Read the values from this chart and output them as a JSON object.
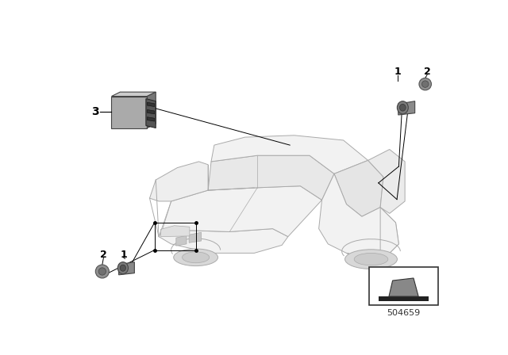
{
  "bg_color": "#ffffff",
  "line_color": "#000000",
  "part_number": "504659",
  "figsize": [
    6.4,
    4.48
  ],
  "dpi": 100,
  "car_line_color": "#aaaaaa",
  "car_face_color": "#f2f2f2",
  "module_face": "#aaaaaa",
  "module_side": "#777777",
  "module_top": "#cccccc",
  "module_connector": "#555555",
  "sensor_face": "#909090",
  "sensor_dark": "#666666",
  "labels": {
    "front_1": "1",
    "front_2": "2",
    "rear_1": "1",
    "rear_2": "2",
    "module": "3"
  }
}
